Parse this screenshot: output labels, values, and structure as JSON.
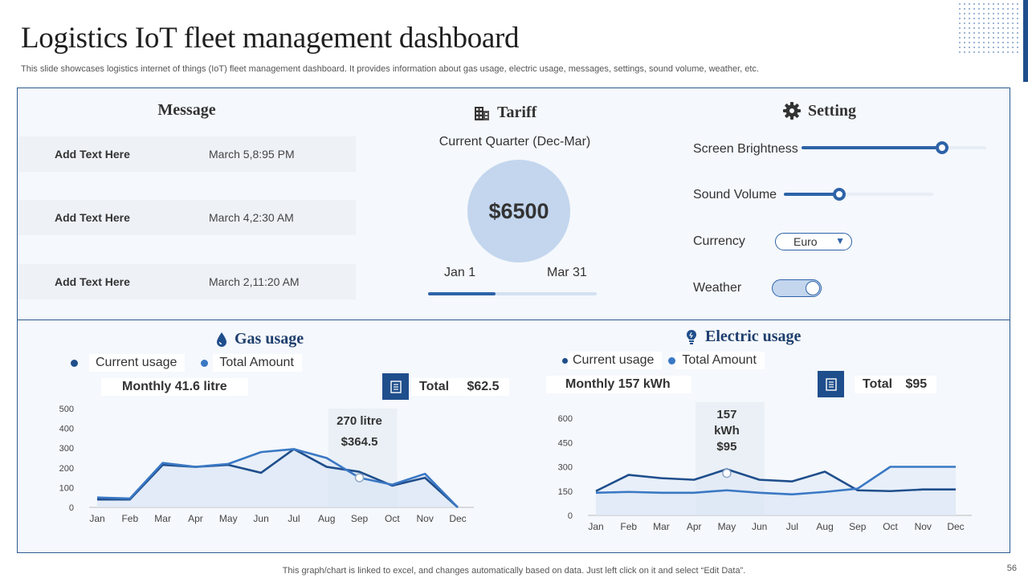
{
  "header": {
    "title": "Logistics IoT fleet management dashboard",
    "subtitle": "This slide showcases logistics internet of things (IoT) fleet management dashboard. It provides information about gas usage, electric usage, messages, settings, sound volume, weather, etc."
  },
  "message": {
    "title": "Message",
    "items": [
      {
        "text": "Add  Text Here",
        "date": "March 5,8:95 PM"
      },
      {
        "text": "Add  Text Here",
        "date": "March 4,2:30 AM"
      },
      {
        "text": "Add  Text Here",
        "date": "March 2,11:20 AM"
      }
    ]
  },
  "tariff": {
    "title": "Tariff",
    "icon": "building-icon",
    "period": "Current Quarter (Dec-Mar)",
    "amount": "$6500",
    "start": "Jan 1",
    "end": "Mar 31",
    "progress": 0.4
  },
  "setting": {
    "title": "Setting",
    "icon": "gear-icon",
    "brightness_label": "Screen Brightness",
    "brightness": 0.76,
    "volume_label": "Sound Volume",
    "volume": 0.37,
    "currency_label": "Currency",
    "currency": "Euro",
    "weather_label": "Weather",
    "weather_on": true
  },
  "gas": {
    "title": "Gas usage",
    "icon": "drop-icon",
    "legend_current": "Current usage",
    "legend_total": "Total Amount",
    "monthly": "Monthly  41.6 litre",
    "total_label": "Total",
    "total_value": "$62.5",
    "tooltip_line1": "270 litre",
    "tooltip_line2": "$364.5"
  },
  "electric": {
    "title": "Electric usage",
    "icon": "plug-icon",
    "legend_current": "Current usage",
    "legend_total": "Total Amount",
    "monthly": "Monthly 157 kWh",
    "total_label": "Total",
    "total_value": "$95",
    "tooltip_line1": "157",
    "tooltip_line2": "kWh",
    "tooltip_line3": "$95"
  },
  "colors": {
    "dark_series": "#1f4e8c",
    "light_series": "#3a78c4",
    "area_fill": "#dce7f5"
  },
  "chart_data": [
    {
      "type": "area",
      "categories": [
        "Jan",
        "Feb",
        "Mar",
        "Apr",
        "May",
        "Jun",
        "Jul",
        "Aug",
        "Sep",
        "Oct",
        "Nov",
        "Dec"
      ],
      "series": [
        {
          "name": "Current usage",
          "values": [
            40,
            40,
            215,
            205,
            215,
            175,
            295,
            205,
            180,
            110,
            150,
            0
          ]
        },
        {
          "name": "Total Amount",
          "values": [
            50,
            45,
            225,
            205,
            220,
            280,
            295,
            250,
            150,
            115,
            170,
            0
          ]
        }
      ],
      "yticks": [
        0,
        100,
        200,
        300,
        400,
        500
      ],
      "ylim": [
        0,
        500
      ],
      "highlight_index": 8
    },
    {
      "type": "area",
      "categories": [
        "Jan",
        "Feb",
        "Mar",
        "Apr",
        "May",
        "Jun",
        "Jul",
        "Aug",
        "Sep",
        "Oct",
        "Nov",
        "Dec"
      ],
      "series": [
        {
          "name": "Current usage",
          "values": [
            150,
            250,
            230,
            220,
            285,
            220,
            210,
            270,
            155,
            150,
            160,
            160
          ]
        },
        {
          "name": "Total Amount",
          "values": [
            140,
            145,
            140,
            140,
            155,
            140,
            130,
            145,
            165,
            300,
            300,
            300
          ]
        }
      ],
      "yticks": [
        0,
        150,
        300,
        450,
        600
      ],
      "ylim": [
        0,
        600
      ],
      "highlight_index": 4
    }
  ],
  "footer": {
    "note": "This graph/chart is linked to excel,  and changes automatically based on data. Just left click on it and select “Edit Data”.",
    "page": "56"
  }
}
